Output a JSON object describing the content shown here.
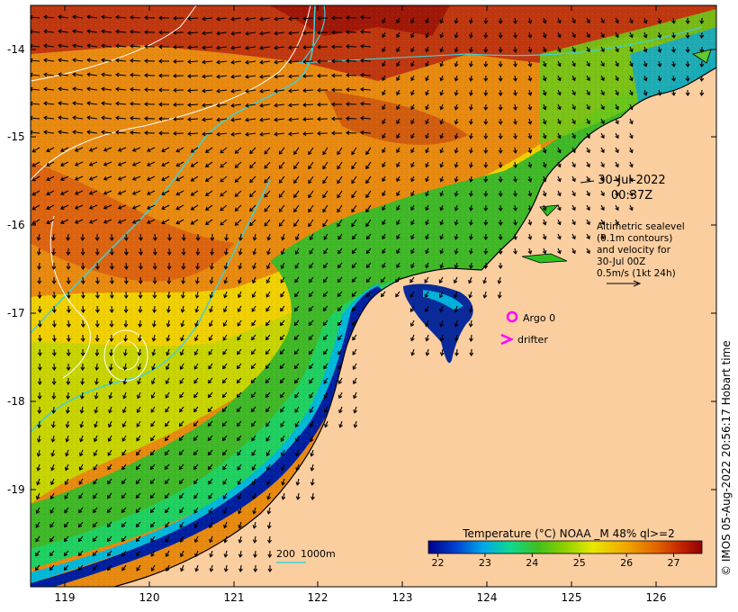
{
  "map": {
    "lat_ticks": [
      "-14",
      "-15",
      "-16",
      "-17",
      "-18",
      "-19"
    ],
    "lon_ticks": [
      "119",
      "120",
      "121",
      "122",
      "123",
      "124",
      "125",
      "126"
    ],
    "date_line1": "30-Jul-2022",
    "date_line2": "00:37Z",
    "altimetry_lines": [
      "Altimetric sealevel",
      "(0.1m contours)",
      "and velocity for",
      "30-Jul 00Z",
      "0.5m/s (1kt 24h)"
    ],
    "argo_label": "Argo 0",
    "drifter_label": "drifter",
    "depth_label_1": "200",
    "depth_label_2": "1000m",
    "colorbar_title": "Temperature (°C) NOAA _M 48% ql>=2",
    "colorbar_ticks": [
      "22",
      "23",
      "24",
      "25",
      "26",
      "27"
    ],
    "colorbar_range": [
      21.8,
      27.6
    ],
    "credit": "© IMOS 05-Aug-2022 20:56:17 Hobart time"
  },
  "colors": {
    "land": "#fbcea0",
    "contour_depth": "#40d0d8",
    "argo": "#ff00ff",
    "drifter": "#ff00ff"
  }
}
